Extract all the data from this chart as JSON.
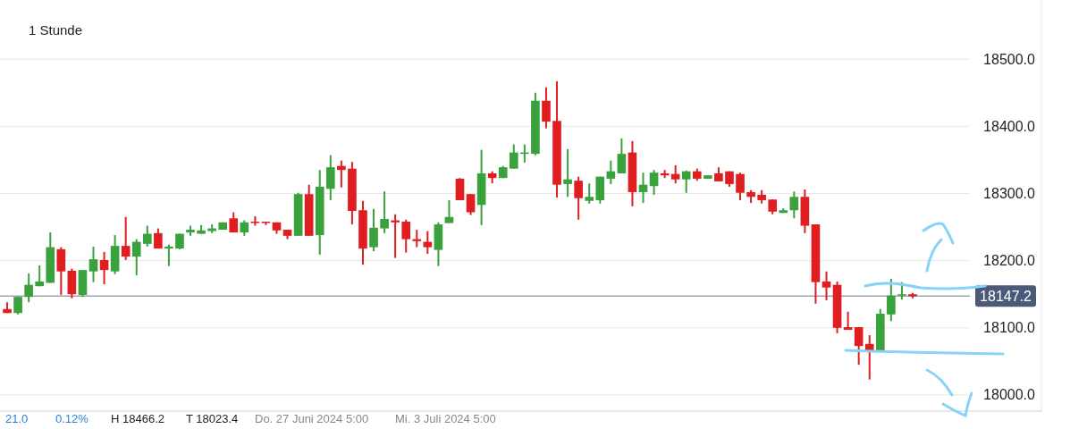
{
  "chart_data": {
    "type": "candlestick",
    "title": "1 Stunde",
    "categories": [
      null,
      null,
      null,
      null,
      null,
      null,
      null,
      null,
      null,
      null,
      null,
      null,
      null,
      null,
      null,
      null,
      null,
      null,
      null,
      null,
      null,
      null,
      null,
      null,
      null,
      null,
      null,
      null,
      null,
      null,
      null,
      null,
      null,
      null,
      null,
      null,
      null,
      null,
      null,
      null,
      null,
      null,
      null,
      null,
      null,
      null,
      null,
      null,
      null,
      null,
      null,
      null,
      null,
      null,
      null,
      null,
      null,
      null,
      null,
      null,
      null,
      null,
      null,
      null,
      null,
      null,
      null,
      null,
      null,
      null,
      null,
      null,
      null,
      null,
      null,
      null,
      null,
      null,
      null,
      null,
      null,
      null,
      null,
      null,
      null
    ],
    "ohlc": [
      [
        18128,
        18138,
        18122,
        18122
      ],
      [
        18122,
        18146,
        18120,
        18146
      ],
      [
        18146,
        18181,
        18138,
        18164
      ],
      [
        18162,
        18193,
        18162,
        18169
      ],
      [
        18167,
        18242,
        18167,
        18220
      ],
      [
        18217,
        18220,
        18149,
        18184
      ],
      [
        18185,
        18188,
        18144,
        18150
      ],
      [
        18149,
        18186,
        18146,
        18186
      ],
      [
        18184,
        18221,
        18168,
        18202
      ],
      [
        18201,
        18213,
        18165,
        18186
      ],
      [
        18184,
        18238,
        18180,
        18222
      ],
      [
        18222,
        18265,
        18201,
        18206
      ],
      [
        18206,
        18232,
        18178,
        18228
      ],
      [
        18225,
        18252,
        18221,
        18240
      ],
      [
        18241,
        18248,
        18218,
        18218
      ],
      [
        18218,
        18224,
        18192,
        18221
      ],
      [
        18218,
        18240,
        18217,
        18240
      ],
      [
        18242,
        18252,
        18237,
        18246
      ],
      [
        18240,
        18253,
        18240,
        18245
      ],
      [
        18244,
        18254,
        18241,
        18248
      ],
      [
        18246,
        18257,
        18246,
        18257
      ],
      [
        18263,
        18272,
        18242,
        18242
      ],
      [
        18242,
        18260,
        18237,
        18257
      ],
      [
        18258,
        18266,
        18252,
        18256
      ],
      [
        18258,
        18258,
        18253,
        18256
      ],
      [
        18257,
        18257,
        18240,
        18245
      ],
      [
        18246,
        18246,
        18232,
        18237
      ],
      [
        18237,
        18301,
        18237,
        18299
      ],
      [
        18299,
        18313,
        18237,
        18237
      ],
      [
        18238,
        18335,
        18209,
        18310
      ],
      [
        18307,
        18357,
        18290,
        18339
      ],
      [
        18341,
        18349,
        18309,
        18335
      ],
      [
        18337,
        18347,
        18254,
        18274
      ],
      [
        18275,
        18289,
        18194,
        18218
      ],
      [
        18220,
        18277,
        18214,
        18249
      ],
      [
        18248,
        18303,
        18241,
        18262
      ],
      [
        18260,
        18269,
        18204,
        18257
      ],
      [
        18258,
        18261,
        18212,
        18232
      ],
      [
        18232,
        18246,
        18220,
        18229
      ],
      [
        18228,
        18244,
        18210,
        18220
      ],
      [
        18216,
        18257,
        18192,
        18254
      ],
      [
        18256,
        18290,
        18256,
        18265
      ],
      [
        18322,
        18323,
        18290,
        18290
      ],
      [
        18299,
        18299,
        18268,
        18272
      ],
      [
        18283,
        18365,
        18253,
        18330
      ],
      [
        18330,
        18333,
        18315,
        18323
      ],
      [
        18323,
        18341,
        18323,
        18339
      ],
      [
        18337,
        18373,
        18337,
        18361
      ],
      [
        18359,
        18373,
        18346,
        18361
      ],
      [
        18359,
        18450,
        18357,
        18438
      ],
      [
        18438,
        18458,
        18397,
        18407
      ],
      [
        18408,
        18467,
        18294,
        18313
      ],
      [
        18314,
        18366,
        18295,
        18321
      ],
      [
        18319,
        18325,
        18261,
        18293
      ],
      [
        18289,
        18315,
        18285,
        18295
      ],
      [
        18290,
        18325,
        18285,
        18325
      ],
      [
        18322,
        18349,
        18314,
        18333
      ],
      [
        18330,
        18382,
        18330,
        18359
      ],
      [
        18361,
        18378,
        18281,
        18302
      ],
      [
        18302,
        18331,
        18286,
        18313
      ],
      [
        18311,
        18335,
        18298,
        18331
      ],
      [
        18330,
        18335,
        18323,
        18327
      ],
      [
        18329,
        18342,
        18315,
        18321
      ],
      [
        18321,
        18334,
        18301,
        18333
      ],
      [
        18333,
        18337,
        18319,
        18322
      ],
      [
        18322,
        18327,
        18322,
        18327
      ],
      [
        18330,
        18339,
        18318,
        18318
      ],
      [
        18333,
        18333,
        18310,
        18314
      ],
      [
        18329,
        18331,
        18290,
        18301
      ],
      [
        18302,
        18305,
        18286,
        18295
      ],
      [
        18298,
        18305,
        18285,
        18290
      ],
      [
        18291,
        18291,
        18269,
        18273
      ],
      [
        18271,
        18278,
        18271,
        18275
      ],
      [
        18275,
        18303,
        18263,
        18295
      ],
      [
        18295,
        18306,
        18241,
        18252
      ],
      [
        18254,
        18254,
        18136,
        18168
      ],
      [
        18169,
        18184,
        18141,
        18160
      ],
      [
        18164,
        18169,
        18092,
        18100
      ],
      [
        18101,
        18124,
        18097,
        18097
      ],
      [
        18101,
        18101,
        18045,
        18073
      ],
      [
        18076,
        18089,
        18023,
        18065
      ],
      [
        18065,
        18128,
        18065,
        18121
      ],
      [
        18120,
        18173,
        18110,
        18148
      ],
      [
        18149,
        18168,
        18142,
        18150
      ],
      [
        18150,
        18152,
        18144,
        18147
      ]
    ],
    "colors": [
      "#e01e22",
      "#3aa23c",
      "#3aa23c",
      "#3aa23c",
      "#3aa23c",
      "#e01e22",
      "#e01e22",
      "#3aa23c",
      "#3aa23c",
      "#e01e22",
      "#3aa23c",
      "#e01e22",
      "#3aa23c",
      "#3aa23c",
      "#e01e22",
      "#3aa23c",
      "#3aa23c",
      "#3aa23c",
      "#3aa23c",
      "#3aa23c",
      "#3aa23c",
      "#e01e22",
      "#3aa23c",
      "#e01e22",
      "#e01e22",
      "#e01e22",
      "#e01e22",
      "#3aa23c",
      "#e01e22",
      "#3aa23c",
      "#3aa23c",
      "#e01e22",
      "#e01e22",
      "#e01e22",
      "#3aa23c",
      "#3aa23c",
      "#e01e22",
      "#e01e22",
      "#e01e22",
      "#e01e22",
      "#3aa23c",
      "#3aa23c",
      "#e01e22",
      "#e01e22",
      "#3aa23c",
      "#e01e22",
      "#3aa23c",
      "#3aa23c",
      "#3aa23c",
      "#3aa23c",
      "#e01e22",
      "#e01e22",
      "#3aa23c",
      "#e01e22",
      "#3aa23c",
      "#3aa23c",
      "#3aa23c",
      "#3aa23c",
      "#e01e22",
      "#3aa23c",
      "#3aa23c",
      "#e01e22",
      "#e01e22",
      "#3aa23c",
      "#e01e22",
      "#3aa23c",
      "#e01e22",
      "#e01e22",
      "#e01e22",
      "#e01e22",
      "#e01e22",
      "#e01e22",
      "#3aa23c",
      "#3aa23c",
      "#e01e22",
      "#e01e22",
      "#e01e22",
      "#e01e22",
      "#e01e22",
      "#e01e22",
      "#e01e22",
      "#3aa23c",
      "#3aa23c",
      "#3aa23c",
      "#e01e22"
    ],
    "ylim": [
      17976,
      18588
    ],
    "yticks": [
      {
        "value": 18000,
        "label": "18000.0"
      },
      {
        "value": 18100,
        "label": "18100.0"
      },
      {
        "value": 18200,
        "label": "18200.0"
      },
      {
        "value": 18300,
        "label": "18300.0"
      },
      {
        "value": 18400,
        "label": "18400.0"
      },
      {
        "value": 18500,
        "label": "18500.0"
      }
    ],
    "tick_labels": "y",
    "grid": "y",
    "ref_lines": [
      {
        "axis": "y",
        "value": 18147.2,
        "label": "18147.2",
        "color": "#9ba3ae"
      }
    ],
    "annotations": [
      "21.0",
      "0.12%",
      "H 18466.2",
      "T 18023.4",
      "Do. 27 Juni 2024 5:00",
      "Mi. 3 Juli 2024 5:00"
    ]
  }
}
